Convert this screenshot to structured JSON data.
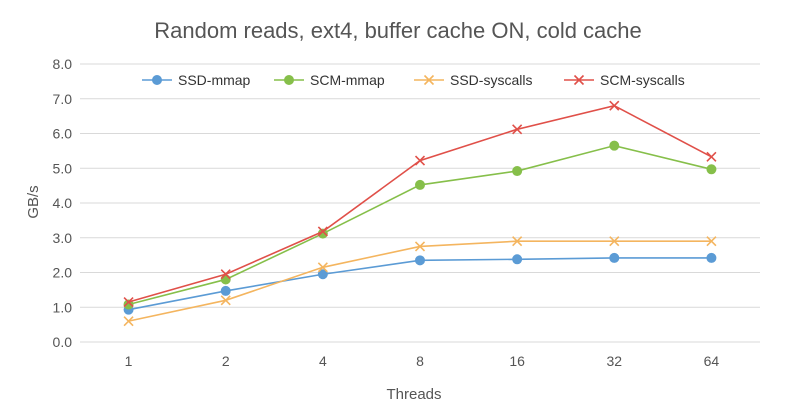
{
  "chart_data": {
    "type": "line",
    "title": "Random reads, ext4, buffer cache ON, cold cache",
    "xlabel": "Threads",
    "ylabel": "GB/s",
    "categories": [
      "1",
      "2",
      "4",
      "8",
      "16",
      "32",
      "64"
    ],
    "ylim": [
      0,
      8
    ],
    "yticks": [
      "0.0",
      "1.0",
      "2.0",
      "3.0",
      "4.0",
      "5.0",
      "6.0",
      "7.0",
      "8.0"
    ],
    "grid": true,
    "legend_position": "top",
    "series": [
      {
        "name": "SSD-mmap",
        "color": "#5b9bd5",
        "marker": "circle",
        "values": [
          0.93,
          1.47,
          1.95,
          2.35,
          2.38,
          2.42,
          2.42
        ]
      },
      {
        "name": "SCM-mmap",
        "color": "#86bf4a",
        "marker": "circle",
        "values": [
          1.08,
          1.8,
          3.12,
          4.52,
          4.92,
          5.65,
          4.97
        ]
      },
      {
        "name": "SSD-syscalls",
        "color": "#f4b55f",
        "marker": "x",
        "values": [
          0.6,
          1.2,
          2.15,
          2.75,
          2.9,
          2.9,
          2.9
        ]
      },
      {
        "name": "SCM-syscalls",
        "color": "#e05049",
        "marker": "x",
        "values": [
          1.15,
          1.95,
          3.18,
          5.22,
          6.12,
          6.8,
          5.33
        ]
      }
    ]
  }
}
